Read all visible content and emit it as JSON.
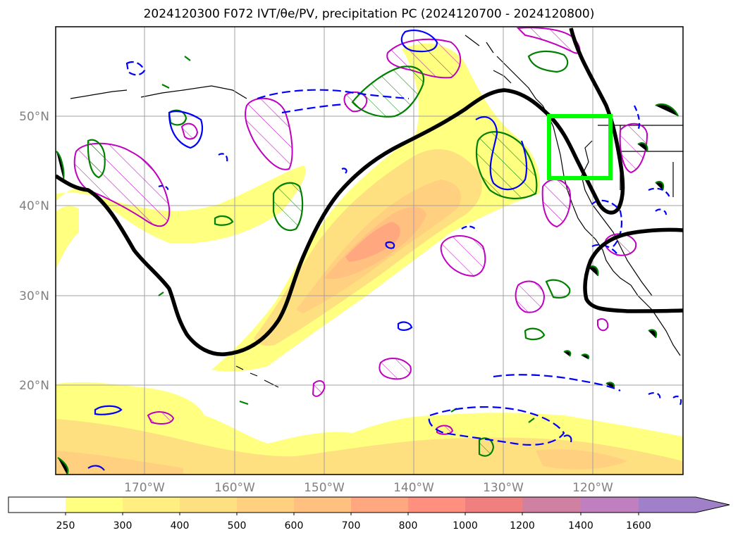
{
  "title": "2024120300 F072 IVT/θe/PV, precipitation PC (2024120700 - 2024120800)",
  "map": {
    "lat_ticks": [
      {
        "label": "50°N",
        "lat": 50
      },
      {
        "label": "40°N",
        "lat": 40
      },
      {
        "label": "30°N",
        "lat": 30
      },
      {
        "label": "20°N",
        "lat": 20
      }
    ],
    "lon_ticks": [
      {
        "label": "170°W",
        "lon": -170
      },
      {
        "label": "160°W",
        "lon": -160
      },
      {
        "label": "150°W",
        "lon": -150
      },
      {
        "label": "140°W",
        "lon": -140
      },
      {
        "label": "130°W",
        "lon": -130
      },
      {
        "label": "120°W",
        "lon": -120
      }
    ],
    "extent": {
      "lon_min": -180,
      "lon_max": -110,
      "lat_min": 10,
      "lat_max": 60
    },
    "highlight_box": {
      "lon_min": -125,
      "lon_max": -118,
      "lat_min": 43,
      "lat_max": 50,
      "color": "#00ff00"
    }
  },
  "colorbar": {
    "ticks": [
      "250",
      "300",
      "400",
      "500",
      "600",
      "700",
      "800",
      "1000",
      "1200",
      "1400",
      "1600"
    ],
    "colors": [
      "#ffff80",
      "#ffee80",
      "#ffe080",
      "#ffd080",
      "#ffc080",
      "#ffa880",
      "#ff9080",
      "#f08080",
      "#d080a0",
      "#c080c0",
      "#a080c8"
    ]
  },
  "legend_colors": {
    "ivt_fill_low": "#ffff80",
    "ivt_fill_high": "#f08080",
    "pv_line": "#000000",
    "precip_positive": "#008000",
    "precip_negative": "#0000ff",
    "pc_region": "#c000c0"
  }
}
